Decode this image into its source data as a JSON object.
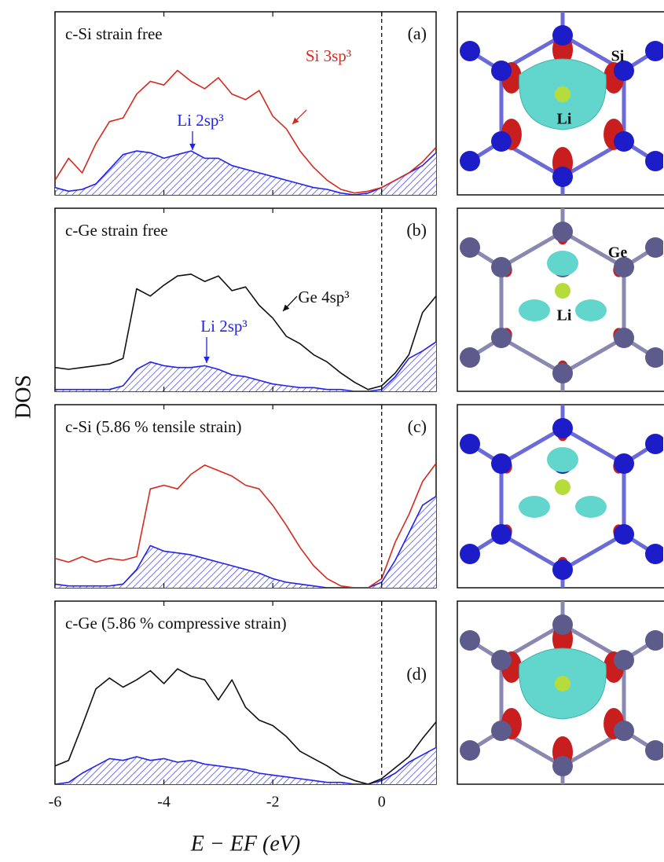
{
  "figure": {
    "ylabel": "DOS"
  },
  "structures": [
    {
      "labels": [
        "Si",
        "Li"
      ]
    },
    {
      "labels": [
        "Ge",
        "Li"
      ]
    }
  ],
  "chart_data": [
    {
      "type": "line",
      "title": "c-Si strain free",
      "panel_label": "(a)",
      "x": [
        -6,
        -5.75,
        -5.5,
        -5.25,
        -5,
        -4.75,
        -4.5,
        -4.25,
        -4,
        -3.75,
        -3.5,
        -3.25,
        -3,
        -2.75,
        -2.5,
        -2.25,
        -2,
        -1.75,
        -1.5,
        -1.25,
        -1,
        -0.75,
        -0.5,
        -0.25,
        0,
        0.25,
        0.5,
        0.75,
        1
      ],
      "xlim": [
        -6,
        1
      ],
      "xticks": [
        -6,
        -4,
        -2,
        0
      ],
      "ylim": [
        0,
        10
      ],
      "fermi_level": 0,
      "series": [
        {
          "name": "Si 3sp³",
          "color": "#d42a1e",
          "style": "line",
          "values": [
            0.8,
            2.0,
            1.2,
            2.8,
            4.0,
            4.2,
            5.5,
            6.2,
            6.0,
            6.8,
            6.2,
            5.8,
            6.4,
            5.5,
            5.2,
            5.7,
            4.3,
            3.6,
            2.4,
            1.5,
            0.8,
            0.3,
            0.1,
            0.2,
            0.4,
            0.8,
            1.2,
            1.8,
            2.6
          ]
        },
        {
          "name": "Li 2sp³",
          "color": "#2222ee",
          "style": "hatched-area",
          "values": [
            0.4,
            0.2,
            0.3,
            0.6,
            1.4,
            2.2,
            2.4,
            2.3,
            2.0,
            2.2,
            2.4,
            2.0,
            2.0,
            1.6,
            1.4,
            1.2,
            1.0,
            0.8,
            0.6,
            0.4,
            0.3,
            0.1,
            0.0,
            0.1,
            0.4,
            0.8,
            1.2,
            1.6,
            2.3
          ]
        }
      ]
    },
    {
      "type": "line",
      "title": "c-Ge strain free",
      "panel_label": "(b)",
      "x": [
        -6,
        -5.75,
        -5.5,
        -5.25,
        -5,
        -4.75,
        -4.5,
        -4.25,
        -4,
        -3.75,
        -3.5,
        -3.25,
        -3,
        -2.75,
        -2.5,
        -2.25,
        -2,
        -1.75,
        -1.5,
        -1.25,
        -1,
        -0.75,
        -0.5,
        -0.25,
        0,
        0.25,
        0.5,
        0.75,
        1
      ],
      "xlim": [
        -6,
        1
      ],
      "xticks": [
        -6,
        -4,
        -2,
        0
      ],
      "ylim": [
        0,
        10
      ],
      "fermi_level": 0,
      "series": [
        {
          "name": "Ge 4sp³",
          "color": "#111111",
          "style": "line",
          "values": [
            1.3,
            1.2,
            1.3,
            1.4,
            1.5,
            1.8,
            5.6,
            5.2,
            5.8,
            6.3,
            6.4,
            6.0,
            6.3,
            5.5,
            5.7,
            4.7,
            4.0,
            3.0,
            2.6,
            2.0,
            1.6,
            1.0,
            0.5,
            0.1,
            0.3,
            1.0,
            2.0,
            4.3,
            5.2
          ]
        },
        {
          "name": "Li 2sp³",
          "color": "#2222ee",
          "style": "hatched-area",
          "values": [
            0.1,
            0.1,
            0.1,
            0.1,
            0.1,
            0.3,
            1.2,
            1.6,
            1.4,
            1.3,
            1.3,
            1.4,
            1.2,
            0.9,
            0.8,
            0.6,
            0.4,
            0.3,
            0.2,
            0.2,
            0.1,
            0.1,
            0.0,
            0.0,
            0.1,
            0.8,
            1.8,
            2.2,
            2.7
          ]
        }
      ]
    },
    {
      "type": "line",
      "title": "c-Si (5.86 % tensile strain)",
      "panel_label": "(c)",
      "x": [
        -6,
        -5.75,
        -5.5,
        -5.25,
        -5,
        -4.75,
        -4.5,
        -4.25,
        -4,
        -3.75,
        -3.5,
        -3.25,
        -3,
        -2.75,
        -2.5,
        -2.25,
        -2,
        -1.75,
        -1.5,
        -1.25,
        -1,
        -0.75,
        -0.5,
        -0.25,
        0,
        0.25,
        0.5,
        0.75,
        1
      ],
      "xlim": [
        -6,
        1
      ],
      "xticks": [
        -6,
        -4,
        -2,
        0
      ],
      "ylim": [
        0,
        10
      ],
      "fermi_level": 0,
      "series": [
        {
          "color": "#d42a1e",
          "style": "line",
          "values": [
            1.6,
            1.4,
            1.7,
            1.4,
            1.6,
            1.5,
            1.7,
            5.4,
            5.6,
            5.4,
            6.2,
            6.7,
            6.4,
            6.1,
            5.6,
            5.4,
            4.5,
            3.4,
            2.2,
            1.2,
            0.5,
            0.1,
            0.0,
            0.0,
            0.5,
            2.5,
            4.0,
            5.8,
            6.8
          ]
        },
        {
          "color": "#2222ee",
          "style": "hatched-area",
          "values": [
            0.2,
            0.1,
            0.1,
            0.1,
            0.1,
            0.2,
            1.0,
            2.3,
            2.0,
            1.9,
            1.8,
            1.6,
            1.4,
            1.2,
            1.0,
            0.8,
            0.5,
            0.3,
            0.2,
            0.1,
            0.0,
            0.0,
            0.0,
            0.0,
            0.3,
            1.5,
            3.0,
            4.5,
            5.0
          ]
        }
      ]
    },
    {
      "type": "line",
      "title": "c-Ge (5.86 % compressive strain)",
      "panel_label": "(d)",
      "x": [
        -6,
        -5.75,
        -5.5,
        -5.25,
        -5,
        -4.75,
        -4.5,
        -4.25,
        -4,
        -3.75,
        -3.5,
        -3.25,
        -3,
        -2.75,
        -2.5,
        -2.25,
        -2,
        -1.75,
        -1.5,
        -1.25,
        -1,
        -0.75,
        -0.5,
        -0.25,
        0,
        0.25,
        0.5,
        0.75,
        1
      ],
      "xlim": [
        -6,
        1
      ],
      "xticks": [
        -6,
        -4,
        -2,
        0
      ],
      "ylim": [
        0,
        10
      ],
      "fermi_level": 0,
      "xlabel": "E − EF (eV)",
      "series": [
        {
          "color": "#111111",
          "style": "line",
          "values": [
            1.0,
            1.3,
            3.2,
            5.2,
            5.8,
            5.3,
            5.7,
            6.2,
            5.5,
            6.3,
            5.9,
            5.7,
            4.6,
            5.7,
            4.2,
            3.5,
            3.2,
            2.6,
            1.8,
            1.4,
            1.0,
            0.5,
            0.2,
            0.0,
            0.3,
            0.9,
            1.5,
            2.5,
            3.4
          ]
        },
        {
          "color": "#2222ee",
          "style": "hatched-area",
          "values": [
            0.0,
            0.1,
            0.6,
            1.0,
            1.4,
            1.3,
            1.5,
            1.3,
            1.4,
            1.2,
            1.3,
            1.1,
            1.0,
            0.9,
            0.8,
            0.6,
            0.5,
            0.4,
            0.3,
            0.2,
            0.1,
            0.1,
            0.0,
            0.0,
            0.2,
            0.6,
            1.2,
            1.6,
            2.0
          ]
        }
      ]
    }
  ]
}
